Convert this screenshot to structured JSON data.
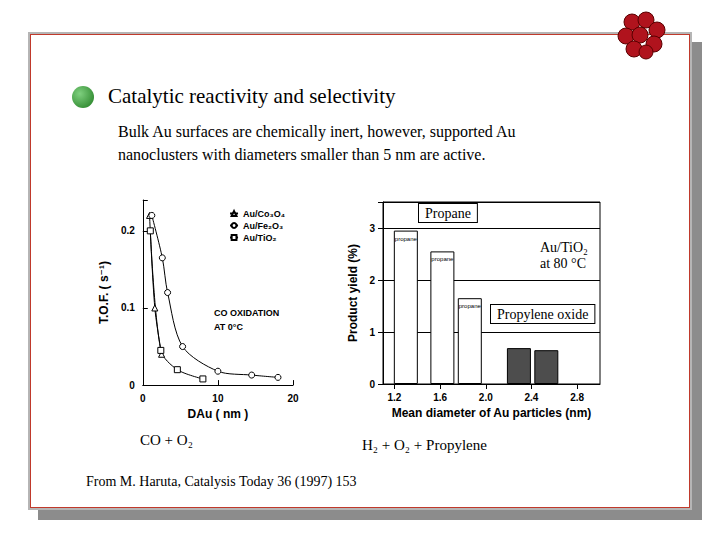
{
  "slide": {
    "title": "Catalytic reactivity and selectivity",
    "text": "Bulk Au surfaces are chemically inert, however, supported Au nanoclusters with diameters smaller than 5 nm are active.",
    "source": "From M. Haruta, Catalysis Today 36 (1997) 153"
  },
  "chart_data": [
    {
      "type": "line",
      "subtitle": "CO + O₂",
      "x_label": "DAu ( nm )",
      "y_label": "T.O.F. ( s⁻¹)",
      "annotations": [
        "CO OXIDATION",
        "AT 0°C"
      ],
      "xlim": [
        0,
        20
      ],
      "xticks": [
        0,
        10,
        20
      ],
      "ylim": [
        0,
        0.24
      ],
      "yticks": [
        0,
        0.1,
        0.2
      ],
      "grid": false,
      "legend": "top-right",
      "series": [
        {
          "name": "Au/Co₃O₄",
          "color": "#000000",
          "marker": "triangle",
          "x": [
            0.9,
            1.6,
            2.5
          ],
          "values": [
            0.22,
            0.1,
            0.04
          ]
        },
        {
          "name": "Au/Fe₂O₃",
          "color": "#000000",
          "marker": "circle",
          "x": [
            1.2,
            2.6,
            3.3,
            5.3,
            10,
            14.5,
            18
          ],
          "values": [
            0.22,
            0.165,
            0.12,
            0.05,
            0.018,
            0.013,
            0.01
          ]
        },
        {
          "name": "Au/TiO₂",
          "color": "#000000",
          "marker": "square",
          "x": [
            1.0,
            2.4,
            4.6,
            8.0
          ],
          "values": [
            0.2,
            0.045,
            0.02,
            0.008
          ]
        }
      ]
    },
    {
      "type": "bar",
      "subtitle": "H₂ + O₂ + Propylene",
      "x_label": "Mean diameter of Au particles (nm)",
      "y_label": "Product yield (%)",
      "annotations": [
        "Propane",
        "Au/TiO₂",
        "at 80 °C",
        "Propylene oxide"
      ],
      "xlim": [
        1.1,
        3.0
      ],
      "xticks": [
        1.2,
        1.6,
        {
          "value": 2,
          "label": "2.0"
        },
        2.4,
        2.8
      ],
      "ylim": [
        0,
        3.5
      ],
      "yticks": [
        0,
        1,
        2,
        3
      ],
      "grid": true,
      "series": [
        {
          "name": "propane",
          "color": "#ffffff",
          "x": [
            1.3,
            1.62,
            1.86
          ],
          "values": [
            2.95,
            2.55,
            1.65
          ]
        },
        {
          "color": "#4d4d4d",
          "x": [
            2.29,
            2.53
          ],
          "values": [
            0.69,
            0.65
          ]
        }
      ]
    }
  ]
}
